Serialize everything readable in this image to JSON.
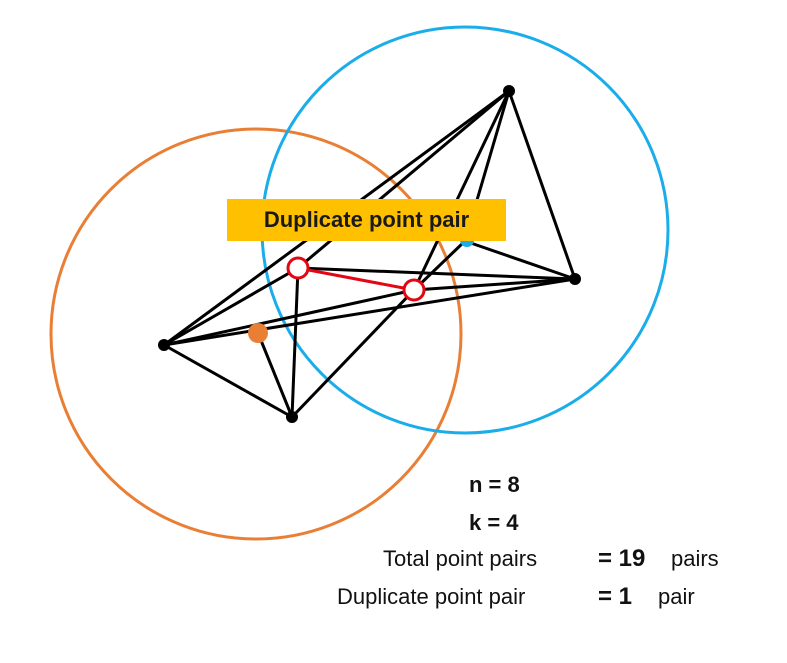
{
  "colors": {
    "orange_circle": "#E97F35",
    "blue_circle": "#1BADE9",
    "edge": "#000000",
    "duplicate_edge": "#E30613",
    "label_bg": "#FFC000"
  },
  "label": "Duplicate point pair",
  "stats": {
    "n": "n = 8",
    "k": "k = 4",
    "total_label": "Total point pairs",
    "total_value": "= 19",
    "total_unit": "pairs",
    "dup_label": "Duplicate point pair",
    "dup_value": "= 1",
    "dup_unit": "pair"
  }
}
